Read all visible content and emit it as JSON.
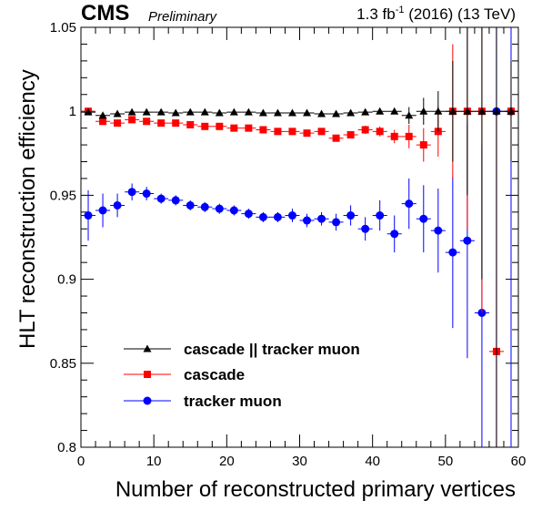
{
  "header": {
    "experiment": "CMS",
    "status": "Preliminary",
    "lumi_value": "1.3 fb",
    "lumi_exp": "-1",
    "lumi_rest": " (2016) (13 TeV)"
  },
  "chart_data": {
    "type": "scatter",
    "xlabel": "Number of reconstructed primary vertices",
    "ylabel": "HLT reconstruction efficiency",
    "xlim": [
      0,
      60
    ],
    "ylim": [
      0.8,
      1.05
    ],
    "x_ticks": [
      0,
      10,
      20,
      30,
      40,
      50,
      60
    ],
    "x_tick_labels": [
      "0",
      "10",
      "20",
      "30",
      "40",
      "50",
      "60"
    ],
    "y_ticks": [
      0.8,
      0.85,
      0.9,
      0.95,
      1.0,
      1.05
    ],
    "y_tick_labels": [
      "0.8",
      "0.85",
      "0.9",
      "0.95",
      "1",
      "1.05"
    ],
    "x_bin_half_width": 1,
    "legend_position": "lower-left",
    "series": [
      {
        "name": "cascade || tracker muon",
        "marker": "triangle",
        "color": "#000000",
        "x": [
          1,
          3,
          5,
          7,
          9,
          11,
          13,
          15,
          17,
          19,
          21,
          23,
          25,
          27,
          29,
          31,
          33,
          35,
          37,
          39,
          41,
          43,
          45,
          47,
          49,
          51,
          53,
          55,
          57,
          59
        ],
        "y": [
          0.9995,
          0.9975,
          0.9985,
          0.9995,
          0.9995,
          0.9995,
          0.999,
          0.9995,
          0.9995,
          0.999,
          0.9995,
          0.9995,
          0.999,
          0.999,
          0.999,
          0.999,
          0.9985,
          0.9985,
          0.999,
          0.9995,
          1.0,
          1.0,
          0.9975,
          1.0,
          1.0,
          1.0,
          1.0,
          1.0,
          1.0,
          1.0
        ],
        "err": [
          0.001,
          0.0012,
          0.0008,
          0.0006,
          0.0005,
          0.0005,
          0.0005,
          0.0005,
          0.0005,
          0.0005,
          0.0006,
          0.0006,
          0.0006,
          0.0007,
          0.0007,
          0.0008,
          0.0009,
          0.001,
          0.0012,
          0.0014,
          0.0015,
          0.0018,
          0.005,
          0.008,
          0.012,
          0.03,
          0.05,
          0.1,
          0.2,
          0.03
        ]
      },
      {
        "name": "cascade",
        "marker": "square",
        "color": "#ff0000",
        "x": [
          1,
          3,
          5,
          7,
          9,
          11,
          13,
          15,
          17,
          19,
          21,
          23,
          25,
          27,
          29,
          31,
          33,
          35,
          37,
          39,
          41,
          43,
          45,
          47,
          49,
          51,
          53,
          55,
          57,
          59
        ],
        "y": [
          1.0,
          0.994,
          0.993,
          0.995,
          0.994,
          0.993,
          0.993,
          0.992,
          0.991,
          0.991,
          0.99,
          0.99,
          0.989,
          0.988,
          0.988,
          0.987,
          0.988,
          0.984,
          0.986,
          0.989,
          0.988,
          0.985,
          0.985,
          0.98,
          0.988,
          1.0,
          1.0,
          1.0,
          0.857,
          1.0
        ],
        "err": [
          0.002,
          0.0015,
          0.001,
          0.001,
          0.001,
          0.001,
          0.001,
          0.001,
          0.001,
          0.001,
          0.001,
          0.001,
          0.001,
          0.0012,
          0.0013,
          0.0014,
          0.0016,
          0.0018,
          0.002,
          0.0025,
          0.003,
          0.004,
          0.007,
          0.01,
          0.015,
          0.04,
          0.07,
          0.12,
          0.14,
          0.03
        ]
      },
      {
        "name": "tracker muon",
        "marker": "circle",
        "color": "#0000ff",
        "x": [
          1,
          3,
          5,
          7,
          9,
          11,
          13,
          15,
          17,
          19,
          21,
          23,
          25,
          27,
          29,
          31,
          33,
          35,
          37,
          39,
          41,
          43,
          45,
          47,
          49,
          51,
          53,
          55,
          57,
          59
        ],
        "y": [
          0.938,
          0.941,
          0.944,
          0.952,
          0.951,
          0.948,
          0.947,
          0.944,
          0.943,
          0.942,
          0.941,
          0.939,
          0.937,
          0.937,
          0.938,
          0.935,
          0.936,
          0.934,
          0.938,
          0.93,
          0.938,
          0.927,
          0.945,
          0.936,
          0.929,
          0.916,
          0.923,
          0.88,
          1.0,
          1.0
        ],
        "err": [
          0.015,
          0.01,
          0.007,
          0.005,
          0.004,
          0.003,
          0.003,
          0.003,
          0.003,
          0.003,
          0.003,
          0.003,
          0.003,
          0.003,
          0.004,
          0.004,
          0.004,
          0.005,
          0.006,
          0.007,
          0.009,
          0.011,
          0.015,
          0.02,
          0.025,
          0.045,
          0.07,
          0.1,
          0.2,
          0.2
        ]
      }
    ]
  }
}
